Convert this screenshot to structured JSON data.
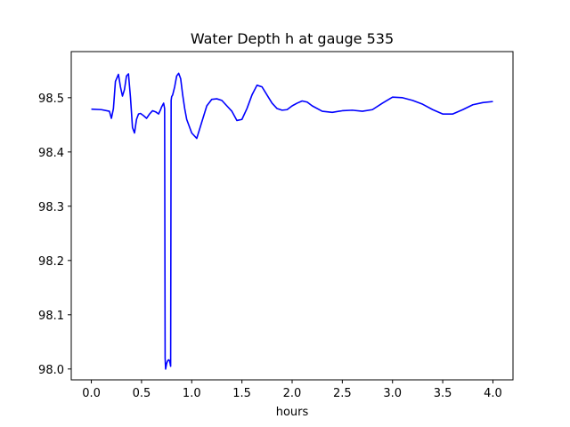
{
  "chart_data": {
    "type": "line",
    "title": "Water Depth h at gauge 535",
    "xlabel": "hours",
    "ylabel": "",
    "xlim": [
      -0.2,
      4.2
    ],
    "ylim": [
      97.98,
      98.585
    ],
    "xticks": [
      0.0,
      0.5,
      1.0,
      1.5,
      2.0,
      2.5,
      3.0,
      3.5,
      4.0
    ],
    "xtick_labels": [
      "0.0",
      "0.5",
      "1.0",
      "1.5",
      "2.0",
      "2.5",
      "3.0",
      "3.5",
      "4.0"
    ],
    "yticks": [
      98.0,
      98.1,
      98.2,
      98.3,
      98.4,
      98.5
    ],
    "ytick_labels": [
      "98.0",
      "98.1",
      "98.2",
      "98.3",
      "98.4",
      "98.5"
    ],
    "grid": false,
    "series": [
      {
        "color": "#0000ff",
        "x": [
          0.0,
          0.1,
          0.18,
          0.2,
          0.22,
          0.24,
          0.27,
          0.29,
          0.31,
          0.33,
          0.35,
          0.37,
          0.39,
          0.41,
          0.43,
          0.45,
          0.47,
          0.49,
          0.52,
          0.55,
          0.58,
          0.61,
          0.64,
          0.67,
          0.69,
          0.7,
          0.72,
          0.73,
          0.735,
          0.74,
          0.745,
          0.75,
          0.76,
          0.77,
          0.78,
          0.79,
          0.795,
          0.8,
          0.81,
          0.83,
          0.85,
          0.87,
          0.89,
          0.91,
          0.93,
          0.95,
          1.0,
          1.05,
          1.1,
          1.15,
          1.2,
          1.25,
          1.3,
          1.35,
          1.4,
          1.45,
          1.5,
          1.55,
          1.6,
          1.65,
          1.7,
          1.75,
          1.8,
          1.85,
          1.9,
          1.95,
          2.0,
          2.05,
          2.1,
          2.15,
          2.2,
          2.3,
          2.4,
          2.5,
          2.6,
          2.7,
          2.8,
          2.9,
          3.0,
          3.1,
          3.2,
          3.3,
          3.4,
          3.5,
          3.6,
          3.7,
          3.8,
          3.9,
          4.0
        ],
        "y": [
          98.479,
          98.478,
          98.475,
          98.462,
          98.48,
          98.53,
          98.543,
          98.52,
          98.503,
          98.515,
          98.54,
          98.544,
          98.5,
          98.445,
          98.435,
          98.46,
          98.47,
          98.471,
          98.467,
          98.462,
          98.47,
          98.476,
          98.474,
          98.47,
          98.478,
          98.483,
          98.49,
          98.48,
          98.02,
          98.0,
          98.005,
          98.01,
          98.015,
          98.017,
          98.015,
          98.005,
          98.495,
          98.502,
          98.505,
          98.52,
          98.54,
          98.545,
          98.535,
          98.505,
          98.48,
          98.46,
          98.435,
          98.425,
          98.455,
          98.485,
          98.497,
          98.498,
          98.495,
          98.485,
          98.475,
          98.458,
          98.46,
          98.48,
          98.505,
          98.523,
          98.52,
          98.505,
          98.49,
          98.48,
          98.477,
          98.478,
          98.485,
          98.49,
          98.494,
          98.492,
          98.485,
          98.475,
          98.473,
          98.476,
          98.477,
          98.475,
          98.478,
          98.49,
          98.501,
          98.5,
          98.495,
          98.488,
          98.478,
          98.47,
          98.47,
          98.478,
          98.487,
          98.491,
          98.493
        ]
      }
    ]
  }
}
